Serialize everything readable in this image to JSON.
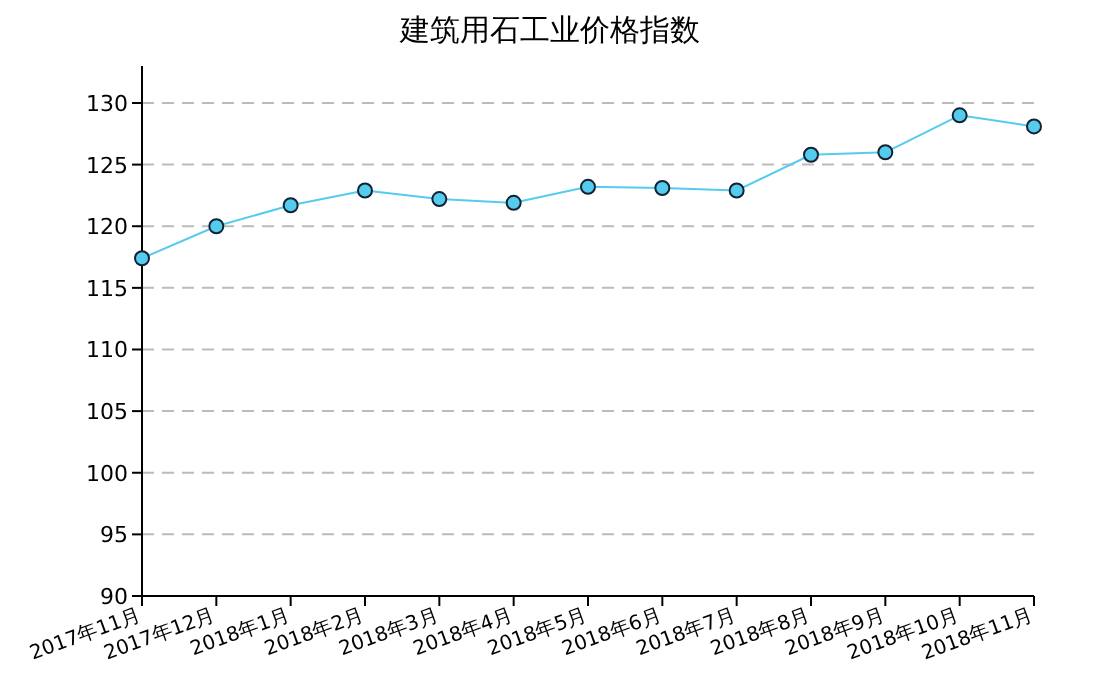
{
  "chart_data": {
    "type": "line",
    "title": "建筑用石工业价格指数",
    "categories": [
      "2017年11月",
      "2017年12月",
      "2018年1月",
      "2018年2月",
      "2018年3月",
      "2018年4月",
      "2018年5月",
      "2018年6月",
      "2018年7月",
      "2018年8月",
      "2018年9月",
      "2018年10月",
      "2018年11月"
    ],
    "series": [
      {
        "color": "#55ccee",
        "values": [
          117.4,
          120.0,
          121.7,
          122.9,
          122.2,
          121.9,
          123.2,
          123.1,
          122.9,
          125.8,
          126.0,
          129.0,
          128.1
        ]
      }
    ],
    "ylim": [
      90,
      133
    ],
    "yticks": [
      90,
      95,
      100,
      105,
      110,
      115,
      120,
      125,
      130
    ],
    "grid": "y",
    "marker": "circle",
    "line_style": "solid"
  }
}
